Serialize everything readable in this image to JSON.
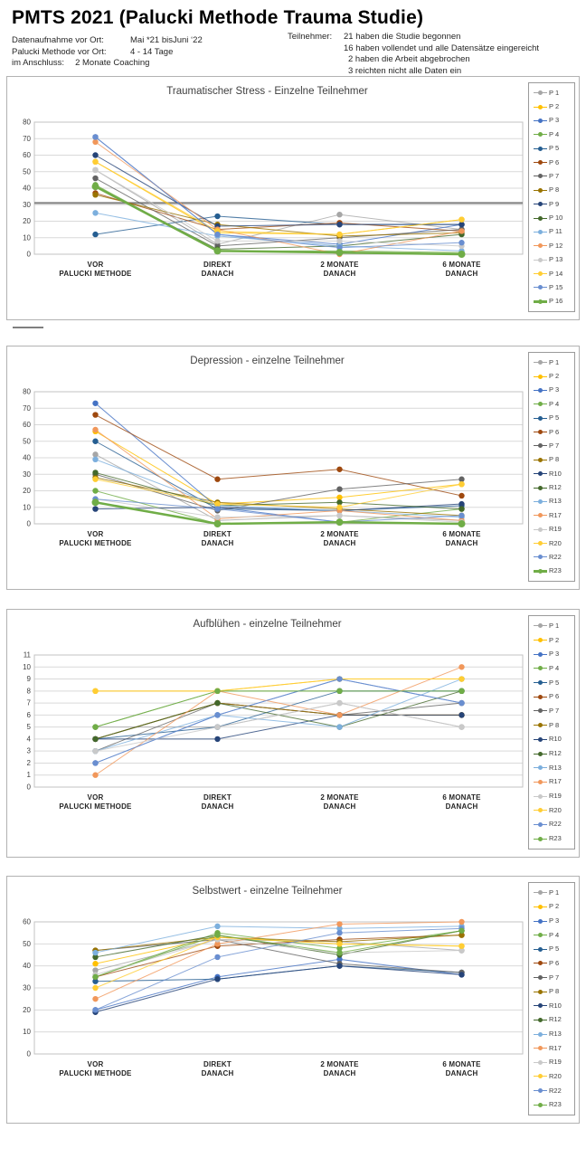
{
  "header": {
    "title": "PMTS 2021 (Palucki Methode Trauma Studie)",
    "meta_left": [
      {
        "label": "Datenaufnahme vor Ort:",
        "value": "Mai *21 bisJuni ‘22"
      },
      {
        "label": "Palucki Methode vor Ort:",
        "value": "4 - 14 Tage"
      },
      {
        "label": "im Anschluss:",
        "value": "2 Monate Coaching"
      }
    ],
    "participants_label": "Teilnehmer:",
    "participants_lines": [
      "21 haben die Studie begonnen",
      "16 haben vollendet und alle Datensätze eingereicht",
      "2 haben die Arbeit abgebrochen",
      "3 reichten nicht alle Daten ein"
    ]
  },
  "chart_data": [
    {
      "type": "line",
      "title": "Traumatischer Stress - Einzelne Teilnehmer",
      "xlabel": "",
      "ylabel": "",
      "ylim": [
        0,
        80
      ],
      "ytick_step": 10,
      "ref_line": 31,
      "grid": true,
      "legend_position": "right",
      "categories": [
        [
          "VOR",
          "PALUCKI METHODE"
        ],
        [
          "DIREKT",
          "DANACH"
        ],
        [
          "2 MONATE",
          "DANACH"
        ],
        [
          "6 MONATE",
          "DANACH"
        ]
      ],
      "series": [
        {
          "name": "P 1",
          "color": "#a6a6a6",
          "thick": false,
          "values": [
            51,
            6,
            24,
            15
          ]
        },
        {
          "name": "P 2",
          "color": "#ffc000",
          "thick": false,
          "values": [
            56,
            13,
            12,
            21
          ]
        },
        {
          "name": "P 3",
          "color": "#4472c4",
          "thick": false,
          "values": [
            71,
            12,
            6,
            18
          ]
        },
        {
          "name": "P 4",
          "color": "#70ad47",
          "thick": false,
          "values": [
            42,
            2,
            2,
            1
          ]
        },
        {
          "name": "P 5",
          "color": "#255e91",
          "thick": false,
          "values": [
            12,
            23,
            18,
            18
          ]
        },
        {
          "name": "P 6",
          "color": "#9e480e",
          "thick": false,
          "values": [
            37,
            15,
            19,
            14
          ]
        },
        {
          "name": "P 7",
          "color": "#636363",
          "thick": false,
          "values": [
            46,
            5,
            10,
            15
          ]
        },
        {
          "name": "P 8",
          "color": "#997300",
          "thick": false,
          "values": [
            36,
            18,
            11,
            13
          ]
        },
        {
          "name": "P 9",
          "color": "#264478",
          "thick": false,
          "values": [
            60,
            17,
            18,
            18
          ]
        },
        {
          "name": "P 10",
          "color": "#43682b",
          "thick": false,
          "values": [
            41,
            3,
            5,
            12
          ]
        },
        {
          "name": "P 11",
          "color": "#7cafdd",
          "thick": false,
          "values": [
            25,
            11,
            5,
            2
          ]
        },
        {
          "name": "P 12",
          "color": "#f1975a",
          "thick": false,
          "values": [
            68,
            15,
            0,
            14
          ]
        },
        {
          "name": "P 13",
          "color": "#c9c9c9",
          "thick": false,
          "values": [
            51,
            8,
            8,
            5
          ]
        },
        {
          "name": "P 14",
          "color": "#ffcd33",
          "thick": false,
          "values": [
            56,
            14,
            12,
            21
          ]
        },
        {
          "name": "P 15",
          "color": "#698ed0",
          "thick": false,
          "values": [
            71,
            12,
            4,
            7
          ]
        },
        {
          "name": "P 16",
          "color": "#70ad47",
          "thick": true,
          "values": [
            41,
            2,
            1,
            0
          ]
        }
      ]
    },
    {
      "type": "line",
      "title": "Depression - einzelne Teilnehmer",
      "xlabel": "",
      "ylabel": "",
      "ylim": [
        0,
        80
      ],
      "ytick_step": 10,
      "ref_line": null,
      "grid": true,
      "legend_position": "right",
      "categories": [
        [
          "VOR",
          "PALUCKI METHODE"
        ],
        [
          "DIREKT",
          "DANACH"
        ],
        [
          "2 MONATE",
          "DANACH"
        ],
        [
          "6 MONATE",
          "DANACH"
        ]
      ],
      "series": [
        {
          "name": "P 1",
          "color": "#a6a6a6",
          "thick": false,
          "values": [
            42,
            2,
            5,
            2
          ]
        },
        {
          "name": "P 2",
          "color": "#ffc000",
          "thick": false,
          "values": [
            56,
            12,
            16,
            24
          ]
        },
        {
          "name": "P 3",
          "color": "#4472c4",
          "thick": false,
          "values": [
            73,
            10,
            1,
            0
          ]
        },
        {
          "name": "P 4",
          "color": "#70ad47",
          "thick": false,
          "values": [
            20,
            0,
            1,
            9
          ]
        },
        {
          "name": "P 5",
          "color": "#255e91",
          "thick": false,
          "values": [
            50,
            9,
            8,
            11
          ]
        },
        {
          "name": "P 6",
          "color": "#9e480e",
          "thick": false,
          "values": [
            66,
            27,
            33,
            17
          ]
        },
        {
          "name": "P 7",
          "color": "#636363",
          "thick": false,
          "values": [
            30,
            8,
            21,
            27
          ]
        },
        {
          "name": "P 8",
          "color": "#997300",
          "thick": false,
          "values": [
            28,
            13,
            9,
            5
          ]
        },
        {
          "name": "R10",
          "color": "#264478",
          "thick": false,
          "values": [
            9,
            10,
            8,
            12
          ]
        },
        {
          "name": "R12",
          "color": "#43682b",
          "thick": false,
          "values": [
            31,
            11,
            13,
            9
          ]
        },
        {
          "name": "R13",
          "color": "#7cafdd",
          "thick": false,
          "values": [
            39,
            11,
            8,
            4
          ]
        },
        {
          "name": "R17",
          "color": "#f1975a",
          "thick": false,
          "values": [
            57,
            3,
            8,
            2
          ]
        },
        {
          "name": "R19",
          "color": "#c9c9c9",
          "thick": false,
          "values": [
            15,
            4,
            5,
            1
          ]
        },
        {
          "name": "R20",
          "color": "#ffcd33",
          "thick": false,
          "values": [
            27,
            12,
            10,
            24
          ]
        },
        {
          "name": "R22",
          "color": "#698ed0",
          "thick": false,
          "values": [
            15,
            9,
            1,
            5
          ]
        },
        {
          "name": "R23",
          "color": "#70ad47",
          "thick": true,
          "values": [
            13,
            0,
            1,
            0
          ]
        }
      ]
    },
    {
      "type": "line",
      "title": "Aufblühen - einzelne Teilnehmer",
      "xlabel": "",
      "ylabel": "",
      "ylim": [
        0,
        11
      ],
      "ytick_step": 1,
      "ref_line": null,
      "grid": true,
      "legend_position": "right",
      "categories": [
        [
          "VOR",
          "PALUCKI METHODE"
        ],
        [
          "DIREKT",
          "DANACH"
        ],
        [
          "2 MONATE",
          "DANACH"
        ],
        [
          "6 MONATE",
          "DANACH"
        ]
      ],
      "series": [
        {
          "name": "P 1",
          "color": "#a6a6a6",
          "thick": false,
          "values": [
            5,
            5,
            7,
            5
          ]
        },
        {
          "name": "P 2",
          "color": "#ffc000",
          "thick": false,
          "values": [
            8,
            8,
            9,
            9
          ]
        },
        {
          "name": "P 3",
          "color": "#4472c4",
          "thick": false,
          "values": [
            2,
            6,
            9,
            7
          ]
        },
        {
          "name": "P 4",
          "color": "#70ad47",
          "thick": false,
          "values": [
            5,
            8,
            8,
            8
          ]
        },
        {
          "name": "P 5",
          "color": "#255e91",
          "thick": false,
          "values": [
            4,
            5,
            8,
            8
          ]
        },
        {
          "name": "P 6",
          "color": "#9e480e",
          "thick": false,
          "values": [
            4,
            7,
            6,
            6
          ]
        },
        {
          "name": "P 7",
          "color": "#636363",
          "thick": false,
          "values": [
            3,
            7,
            6,
            7
          ]
        },
        {
          "name": "P 8",
          "color": "#997300",
          "thick": false,
          "values": [
            4,
            7,
            6,
            6
          ]
        },
        {
          "name": "R10",
          "color": "#264478",
          "thick": false,
          "values": [
            4,
            4,
            6,
            6
          ]
        },
        {
          "name": "R12",
          "color": "#43682b",
          "thick": false,
          "values": [
            4,
            7,
            5,
            8
          ]
        },
        {
          "name": "R13",
          "color": "#7cafdd",
          "thick": false,
          "values": [
            3,
            6,
            5,
            9
          ]
        },
        {
          "name": "R17",
          "color": "#f1975a",
          "thick": false,
          "values": [
            1,
            8,
            6,
            10
          ]
        },
        {
          "name": "R19",
          "color": "#c9c9c9",
          "thick": false,
          "values": [
            3,
            5,
            7,
            5
          ]
        },
        {
          "name": "R20",
          "color": "#ffcd33",
          "thick": false,
          "values": [
            8,
            8,
            9,
            9
          ]
        },
        {
          "name": "R22",
          "color": "#698ed0",
          "thick": false,
          "values": [
            2,
            6,
            9,
            7
          ]
        },
        {
          "name": "R23",
          "color": "#70ad47",
          "thick": false,
          "values": [
            5,
            8,
            8,
            8
          ]
        }
      ]
    },
    {
      "type": "line",
      "title": "Selbstwert - einzelne Teilnehmer",
      "xlabel": "",
      "ylabel": "",
      "ylim": [
        0,
        60
      ],
      "ytick_step": 10,
      "ref_line": null,
      "grid": true,
      "legend_position": "right",
      "categories": [
        [
          "VOR",
          "PALUCKI METHODE"
        ],
        [
          "DIREKT",
          "DANACH"
        ],
        [
          "2 MONATE",
          "DANACH"
        ],
        [
          "6 MONATE",
          "DANACH"
        ]
      ],
      "series": [
        {
          "name": "P 1",
          "color": "#a6a6a6",
          "thick": false,
          "values": [
            38,
            52,
            51,
            47
          ]
        },
        {
          "name": "P 2",
          "color": "#ffc000",
          "thick": false,
          "values": [
            41,
            53,
            50,
            49
          ]
        },
        {
          "name": "P 3",
          "color": "#4472c4",
          "thick": false,
          "values": [
            20,
            35,
            43,
            36
          ]
        },
        {
          "name": "P 4",
          "color": "#70ad47",
          "thick": false,
          "values": [
            35,
            55,
            48,
            56
          ]
        },
        {
          "name": "P 5",
          "color": "#255e91",
          "thick": false,
          "values": [
            33,
            34,
            40,
            37
          ]
        },
        {
          "name": "P 6",
          "color": "#9e480e",
          "thick": false,
          "values": [
            35,
            49,
            52,
            54
          ]
        },
        {
          "name": "P 7",
          "color": "#636363",
          "thick": false,
          "values": [
            47,
            52,
            41,
            37
          ]
        },
        {
          "name": "P 8",
          "color": "#997300",
          "thick": false,
          "values": [
            47,
            53,
            51,
            54
          ]
        },
        {
          "name": "R10",
          "color": "#264478",
          "thick": false,
          "values": [
            19,
            34,
            40,
            36
          ]
        },
        {
          "name": "R12",
          "color": "#43682b",
          "thick": false,
          "values": [
            44,
            54,
            45,
            56
          ]
        },
        {
          "name": "R13",
          "color": "#7cafdd",
          "thick": false,
          "values": [
            46,
            58,
            57,
            58
          ]
        },
        {
          "name": "R17",
          "color": "#f1975a",
          "thick": false,
          "values": [
            25,
            50,
            59,
            60
          ]
        },
        {
          "name": "R19",
          "color": "#c9c9c9",
          "thick": false,
          "values": [
            36,
            52,
            46,
            47
          ]
        },
        {
          "name": "R20",
          "color": "#ffcd33",
          "thick": false,
          "values": [
            30,
            53,
            50,
            49
          ]
        },
        {
          "name": "R22",
          "color": "#698ed0",
          "thick": false,
          "values": [
            20,
            44,
            55,
            57
          ]
        },
        {
          "name": "R23",
          "color": "#70ad47",
          "thick": false,
          "values": [
            35,
            54,
            46,
            56
          ]
        }
      ]
    }
  ]
}
